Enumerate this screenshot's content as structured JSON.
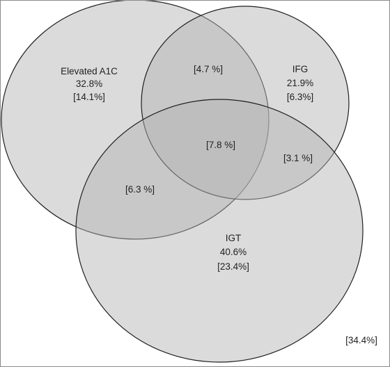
{
  "sets": [
    {
      "id": "a1c",
      "name": "Elevated A1C",
      "percent": "32.8%",
      "exclusive": "[14.1%]"
    },
    {
      "id": "ifg",
      "name": "IFG",
      "percent": "21.9%",
      "exclusive": "[6.3%]"
    },
    {
      "id": "igt",
      "name": "IGT",
      "percent": "40.6%",
      "exclusive": "[23.4%]"
    }
  ],
  "overlaps": {
    "a1c_ifg": "[4.7 %]",
    "a1c_igt": "[6.3 %]",
    "ifg_igt": "[3.1 %]",
    "all_three": "[7.8 %]"
  },
  "outside": "[34.4%]",
  "colors": {
    "fill": "#b3b3b3",
    "stroke": "#1f1f1f",
    "background": "#ffffff"
  }
}
